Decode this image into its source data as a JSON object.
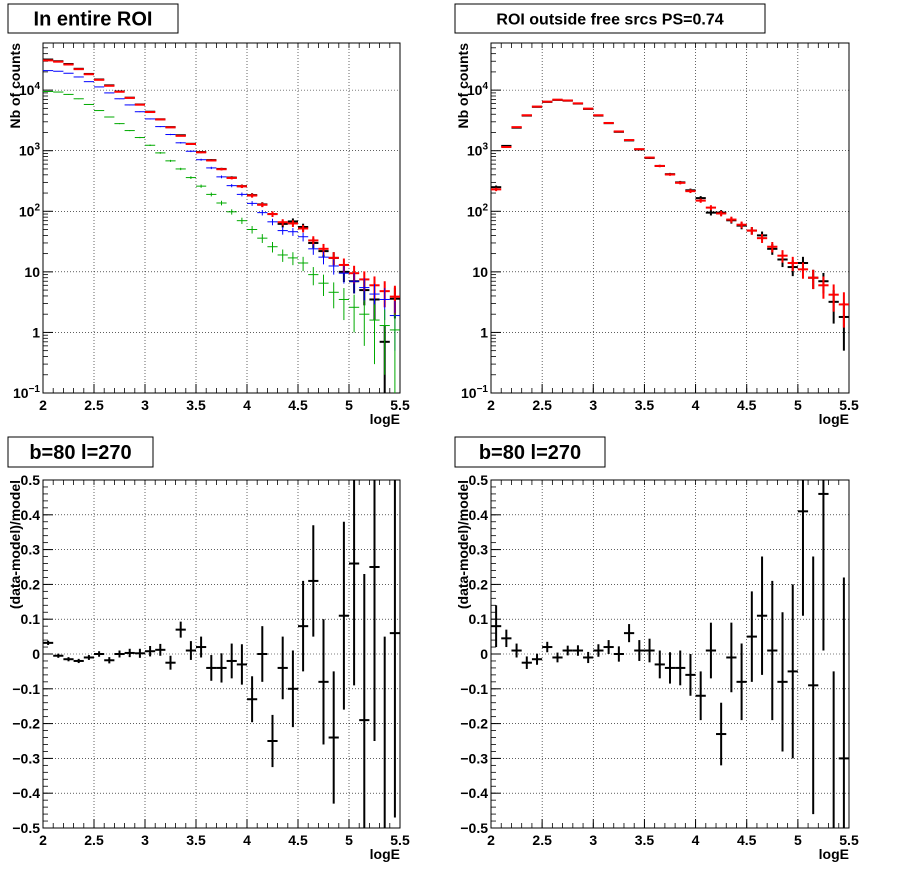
{
  "chart_data": [
    {
      "type": "line",
      "title": "In entire ROI",
      "xlabel": "logE",
      "ylabel": "Nb of counts",
      "log_y": true,
      "xlim": [
        2,
        5.5
      ],
      "ylim": [
        0.1,
        60000
      ],
      "x_ticks": [
        "2",
        "2.5",
        "3",
        "3.5",
        "4",
        "4.5",
        "5",
        "5.5"
      ],
      "y_ticks": [
        {
          "base": "10",
          "exp": "−1"
        },
        {
          "base": "1",
          "exp": ""
        },
        {
          "base": "10",
          "exp": ""
        },
        {
          "base": "10",
          "exp": "2"
        },
        {
          "base": "10",
          "exp": "3"
        },
        {
          "base": "10",
          "exp": "4"
        }
      ],
      "grid": true,
      "x": [
        2.05,
        2.15,
        2.25,
        2.35,
        2.45,
        2.55,
        2.65,
        2.75,
        2.85,
        2.95,
        3.05,
        3.15,
        3.25,
        3.35,
        3.45,
        3.55,
        3.65,
        3.75,
        3.85,
        3.95,
        4.05,
        4.15,
        4.25,
        4.35,
        4.45,
        4.55,
        4.65,
        4.75,
        4.85,
        4.95,
        5.05,
        5.15,
        5.25,
        5.35,
        5.45
      ],
      "series": [
        {
          "color": "#000000",
          "values": [
            32000,
            30000,
            27000,
            22500,
            18500,
            15000,
            12000,
            9500,
            7500,
            5800,
            4400,
            3300,
            2450,
            1800,
            1300,
            950,
            700,
            500,
            360,
            260,
            185,
            130,
            90,
            62,
            68,
            55,
            30,
            22,
            17,
            10,
            7,
            5,
            3.5,
            0.7,
            3.6
          ],
          "errors": [
            180,
            170,
            160,
            150,
            140,
            120,
            110,
            100,
            90,
            76,
            66,
            57,
            50,
            42,
            36,
            31,
            26,
            22,
            19,
            16,
            14,
            11,
            9.5,
            8,
            8.2,
            7.4,
            5.5,
            4.7,
            4.1,
            3.2,
            2.6,
            2.2,
            1.9,
            0.6,
            1.9
          ]
        },
        {
          "color": "#ff0000",
          "values": [
            31000,
            29500,
            26500,
            22200,
            18300,
            14800,
            11800,
            9400,
            7450,
            5750,
            4350,
            3280,
            2430,
            1760,
            1290,
            940,
            690,
            495,
            355,
            258,
            182,
            128,
            90,
            66,
            63,
            52,
            33,
            24,
            17,
            13,
            9.5,
            7.5,
            6,
            4.8,
            3.9
          ],
          "errors": [
            180,
            170,
            160,
            150,
            140,
            120,
            110,
            100,
            90,
            76,
            66,
            57,
            50,
            42,
            36,
            31,
            26,
            22,
            19,
            16,
            14,
            11,
            9.5,
            8,
            8,
            7.2,
            5.7,
            4.9,
            4.1,
            3.6,
            3.1,
            2.7,
            2.4,
            2.2,
            2
          ]
        },
        {
          "color": "#0000ff",
          "values": [
            21000,
            20500,
            19000,
            16500,
            13800,
            11300,
            9000,
            7200,
            5700,
            4400,
            3350,
            2500,
            1850,
            1350,
            980,
            710,
            520,
            370,
            265,
            190,
            135,
            95,
            67,
            48,
            46,
            38,
            24,
            17.5,
            12.5,
            9.5,
            7,
            5.5,
            4.3,
            3.5,
            1.9
          ],
          "errors": [
            150,
            140,
            130,
            120,
            110,
            100,
            90,
            80,
            75,
            66,
            58,
            50,
            43,
            37,
            31,
            27,
            23,
            19,
            16,
            14,
            12,
            9.7,
            8.2,
            6.9,
            6.8,
            6.2,
            4.9,
            4.2,
            3.5,
            3.1,
            2.6,
            2.3,
            2,
            1.9,
            1.4
          ]
        },
        {
          "color": "#00aa00",
          "values": [
            9500,
            9300,
            8500,
            7200,
            5800,
            4600,
            3600,
            2800,
            2150,
            1650,
            1230,
            920,
            680,
            500,
            360,
            260,
            190,
            137,
            98,
            70,
            50,
            36,
            26,
            19,
            17,
            14,
            9,
            6.5,
            4.6,
            3.5,
            2.6,
            2,
            1.6,
            1.3,
            1.1
          ],
          "errors": [
            97,
            96,
            92,
            85,
            76,
            68,
            60,
            53,
            46,
            41,
            35,
            30,
            26,
            22,
            19,
            16,
            14,
            12,
            9.9,
            8.4,
            7.1,
            6,
            5.1,
            4.4,
            4.1,
            3.7,
            3,
            2.5,
            2.1,
            1.9,
            1.6,
            1.4,
            1.3,
            1.1,
            1
          ]
        }
      ]
    },
    {
      "type": "line",
      "title": "ROI outside free srcs PS=0.74",
      "xlabel": "logE",
      "ylabel": "Nb of counts",
      "log_y": true,
      "xlim": [
        2,
        5.5
      ],
      "ylim": [
        0.1,
        60000
      ],
      "x_ticks": [
        "2",
        "2.5",
        "3",
        "3.5",
        "4",
        "4.5",
        "5",
        "5.5"
      ],
      "y_ticks": [
        {
          "base": "10",
          "exp": "−1"
        },
        {
          "base": "1",
          "exp": ""
        },
        {
          "base": "10",
          "exp": ""
        },
        {
          "base": "10",
          "exp": "2"
        },
        {
          "base": "10",
          "exp": "3"
        },
        {
          "base": "10",
          "exp": "4"
        }
      ],
      "grid": true,
      "x": [
        2.05,
        2.15,
        2.25,
        2.35,
        2.45,
        2.55,
        2.65,
        2.75,
        2.85,
        2.95,
        3.05,
        3.15,
        3.25,
        3.35,
        3.45,
        3.55,
        3.65,
        3.75,
        3.85,
        3.95,
        4.05,
        4.15,
        4.25,
        4.35,
        4.45,
        4.55,
        4.65,
        4.75,
        4.85,
        4.95,
        5.05,
        5.15,
        5.25,
        5.35,
        5.45
      ],
      "series": [
        {
          "color": "#000000",
          "values": [
            250,
            1200,
            2400,
            3800,
            5300,
            6400,
            6900,
            6700,
            6000,
            4900,
            3800,
            2850,
            2050,
            1480,
            1050,
            760,
            560,
            410,
            300,
            222,
            165,
            95,
            95,
            71,
            58,
            48,
            40,
            24,
            16,
            12,
            14,
            8,
            7,
            3.2,
            1.8
          ],
          "errors": [
            16,
            35,
            49,
            62,
            73,
            80,
            83,
            82,
            77,
            70,
            62,
            53,
            45,
            38,
            32,
            28,
            24,
            20,
            17,
            15,
            13,
            9.7,
            9.7,
            8.4,
            7.6,
            6.9,
            6.3,
            4.9,
            4,
            3.5,
            3.7,
            2.8,
            2.6,
            1.8,
            1.3
          ]
        },
        {
          "color": "#ff0000",
          "values": [
            230,
            1150,
            2450,
            3850,
            5350,
            6450,
            6950,
            6750,
            6050,
            4950,
            3850,
            2870,
            2080,
            1500,
            1060,
            770,
            560,
            405,
            295,
            215,
            150,
            115,
            92,
            73,
            60,
            48,
            36,
            26,
            18.5,
            14,
            11,
            8,
            6,
            4.2,
            2.9
          ],
          "errors": [
            15,
            34,
            50,
            62,
            73,
            80,
            83,
            82,
            78,
            70,
            62,
            54,
            46,
            39,
            33,
            28,
            24,
            20,
            17,
            15,
            12,
            11,
            9.6,
            8.5,
            7.7,
            6.9,
            6,
            5.1,
            4.3,
            3.7,
            3.3,
            2.8,
            2.4,
            2,
            1.7
          ]
        }
      ]
    },
    {
      "type": "line",
      "title": "b=80 l=270",
      "xlabel": "logE",
      "ylabel": "(data-model)/model",
      "xlim": [
        2,
        5.5
      ],
      "ylim": [
        -0.5,
        0.5
      ],
      "x_ticks": [
        "2",
        "2.5",
        "3",
        "3.5",
        "4",
        "4.5",
        "5",
        "5.5"
      ],
      "y_ticks": [
        "−0.5",
        "−0.4",
        "−0.3",
        "−0.2",
        "−0.1",
        "0",
        "0.1",
        "0.2",
        "0.3",
        "0.4",
        "0.5"
      ],
      "grid": true,
      "x": [
        2.05,
        2.15,
        2.25,
        2.35,
        2.45,
        2.55,
        2.65,
        2.75,
        2.85,
        2.95,
        3.05,
        3.15,
        3.25,
        3.35,
        3.45,
        3.55,
        3.65,
        3.75,
        3.85,
        3.95,
        4.05,
        4.15,
        4.25,
        4.35,
        4.45,
        4.55,
        4.65,
        4.75,
        4.85,
        4.95,
        5.05,
        5.15,
        5.25,
        5.35,
        5.45
      ],
      "series": [
        {
          "color": "#000000",
          "values": [
            0.032,
            -0.005,
            -0.015,
            -0.02,
            -0.01,
            0,
            -0.018,
            0,
            0.003,
            0.002,
            0.008,
            0.012,
            -0.025,
            0.07,
            0.01,
            0.02,
            -0.04,
            -0.04,
            -0.02,
            -0.03,
            -0.13,
            0,
            -0.25,
            -0.04,
            -0.1,
            0.08,
            0.21,
            -0.08,
            -0.24,
            0.11,
            0.26,
            -0.19,
            0.25,
            -0.55,
            0.06
          ],
          "errors": [
            0.006,
            0.006,
            0.006,
            0.006,
            0.007,
            0.008,
            0.009,
            0.01,
            0.012,
            0.013,
            0.015,
            0.017,
            0.02,
            0.023,
            0.027,
            0.03,
            0.037,
            0.042,
            0.05,
            0.058,
            0.066,
            0.08,
            0.075,
            0.09,
            0.11,
            0.13,
            0.16,
            0.18,
            0.19,
            0.27,
            0.35,
            0.42,
            0.5,
            0.6,
            0.53
          ]
        }
      ]
    },
    {
      "type": "line",
      "title": "b=80 l=270",
      "xlabel": "logE",
      "ylabel": "(data-model)/model",
      "xlim": [
        2,
        5.5
      ],
      "ylim": [
        -0.5,
        0.5
      ],
      "x_ticks": [
        "2",
        "2.5",
        "3",
        "3.5",
        "4",
        "4.5",
        "5",
        "5.5"
      ],
      "y_ticks": [
        "−0.5",
        "−0.4",
        "−0.3",
        "−0.2",
        "−0.1",
        "0",
        "0.1",
        "0.2",
        "0.3",
        "0.4",
        "0.5"
      ],
      "grid": true,
      "x": [
        2.05,
        2.15,
        2.25,
        2.35,
        2.45,
        2.55,
        2.65,
        2.75,
        2.85,
        2.95,
        3.05,
        3.15,
        3.25,
        3.35,
        3.45,
        3.55,
        3.65,
        3.75,
        3.85,
        3.95,
        4.05,
        4.15,
        4.25,
        4.35,
        4.45,
        4.55,
        4.65,
        4.75,
        4.85,
        4.95,
        5.05,
        5.15,
        5.25,
        5.35,
        5.45
      ],
      "series": [
        {
          "color": "#000000",
          "values": [
            0.08,
            0.045,
            0.01,
            -0.025,
            -0.015,
            0.02,
            -0.01,
            0.01,
            0.01,
            -0.01,
            0.01,
            0.02,
            0.0,
            0.06,
            0.01,
            0.01,
            -0.03,
            -0.04,
            -0.04,
            -0.06,
            -0.12,
            0.01,
            -0.23,
            -0.01,
            -0.08,
            0.05,
            0.11,
            0.01,
            -0.08,
            -0.05,
            0.41,
            -0.09,
            0.46,
            -0.55,
            -0.3
          ],
          "errors": [
            0.06,
            0.025,
            0.02,
            0.018,
            0.016,
            0.015,
            0.014,
            0.014,
            0.015,
            0.016,
            0.018,
            0.02,
            0.022,
            0.026,
            0.03,
            0.034,
            0.04,
            0.045,
            0.05,
            0.06,
            0.07,
            0.08,
            0.09,
            0.1,
            0.11,
            0.13,
            0.17,
            0.2,
            0.2,
            0.25,
            0.3,
            0.37,
            0.45,
            0.5,
            0.52
          ]
        }
      ]
    }
  ]
}
